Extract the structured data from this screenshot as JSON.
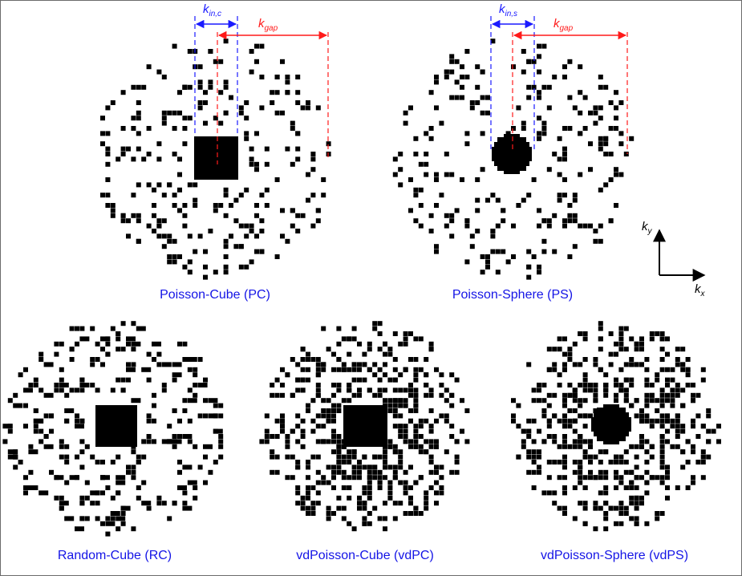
{
  "colors": {
    "caption": "#1414e6",
    "inner": "#1a1aff",
    "gap": "#ff1a1a",
    "mask": "#000000"
  },
  "panels": [
    {
      "id": "pc",
      "caption": "Poisson-Cube (PC)",
      "center": "cube",
      "density": "uniform"
    },
    {
      "id": "ps",
      "caption": "Poisson-Sphere (PS)",
      "center": "sphere",
      "density": "uniform"
    },
    {
      "id": "rc",
      "caption": "Random-Cube (RC)",
      "center": "cube",
      "density": "random"
    },
    {
      "id": "vdpc",
      "caption": "vdPoisson-Cube (vdPC)",
      "center": "cube",
      "density": "variable"
    },
    {
      "id": "vdps",
      "caption": "vdPoisson-Sphere (vdPS)",
      "center": "sphere",
      "density": "variable"
    }
  ],
  "annotations": {
    "pc_inner": {
      "main": "k",
      "sub": "in,c"
    },
    "ps_inner": {
      "main": "k",
      "sub": "in,s"
    },
    "pc_gap": {
      "main": "k",
      "sub": "gap"
    },
    "ps_gap": {
      "main": "k",
      "sub": "gap"
    }
  },
  "axes": {
    "y": {
      "main": "k",
      "sub": "y"
    },
    "x": {
      "main": "k",
      "sub": "x"
    }
  }
}
